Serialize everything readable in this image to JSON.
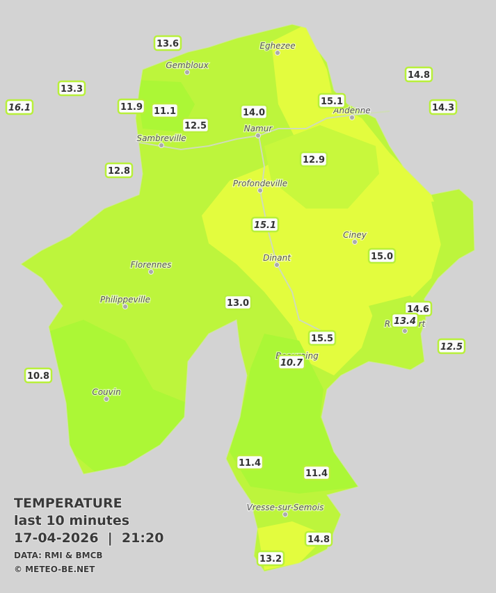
{
  "title": "TEMPERATURE",
  "subtitle": "last 10 minutes",
  "timestamp": "17-04-2026  |  21:20",
  "credits": [
    "DATA: RMI & BMCB",
    "© METEO-BE.NET"
  ],
  "cities": [
    "Eghezee",
    "Gembloux",
    "Andenne",
    "Namur",
    "Sambreville",
    "Profondeville",
    "Ciney",
    "Dinant",
    "Florennes",
    "Philippeville",
    "Rochefort",
    "Beauraing",
    "Couvin",
    "Vresse-sur-Semois"
  ],
  "stations": [
    {
      "value": "13.6",
      "italic": false
    },
    {
      "value": "13.3",
      "italic": false
    },
    {
      "value": "16.1",
      "italic": true
    },
    {
      "value": "11.9",
      "italic": false
    },
    {
      "value": "11.1",
      "italic": false
    },
    {
      "value": "12.5",
      "italic": false
    },
    {
      "value": "14.0",
      "italic": false
    },
    {
      "value": "15.1",
      "italic": false
    },
    {
      "value": "14.8",
      "italic": false
    },
    {
      "value": "14.3",
      "italic": false
    },
    {
      "value": "12.8",
      "italic": false
    },
    {
      "value": "12.9",
      "italic": false
    },
    {
      "value": "15.1",
      "italic": true
    },
    {
      "value": "15.0",
      "italic": false
    },
    {
      "value": "13.0",
      "italic": false
    },
    {
      "value": "14.6",
      "italic": false
    },
    {
      "value": "13.4",
      "italic": true
    },
    {
      "value": "12.5",
      "italic": true
    },
    {
      "value": "15.5",
      "italic": false
    },
    {
      "value": "10.7",
      "italic": true
    },
    {
      "value": "10.8",
      "italic": false
    },
    {
      "value": "11.4",
      "italic": false
    },
    {
      "value": "11.4",
      "italic": false
    },
    {
      "value": "14.8",
      "italic": false
    },
    {
      "value": "13.2",
      "italic": false
    }
  ]
}
